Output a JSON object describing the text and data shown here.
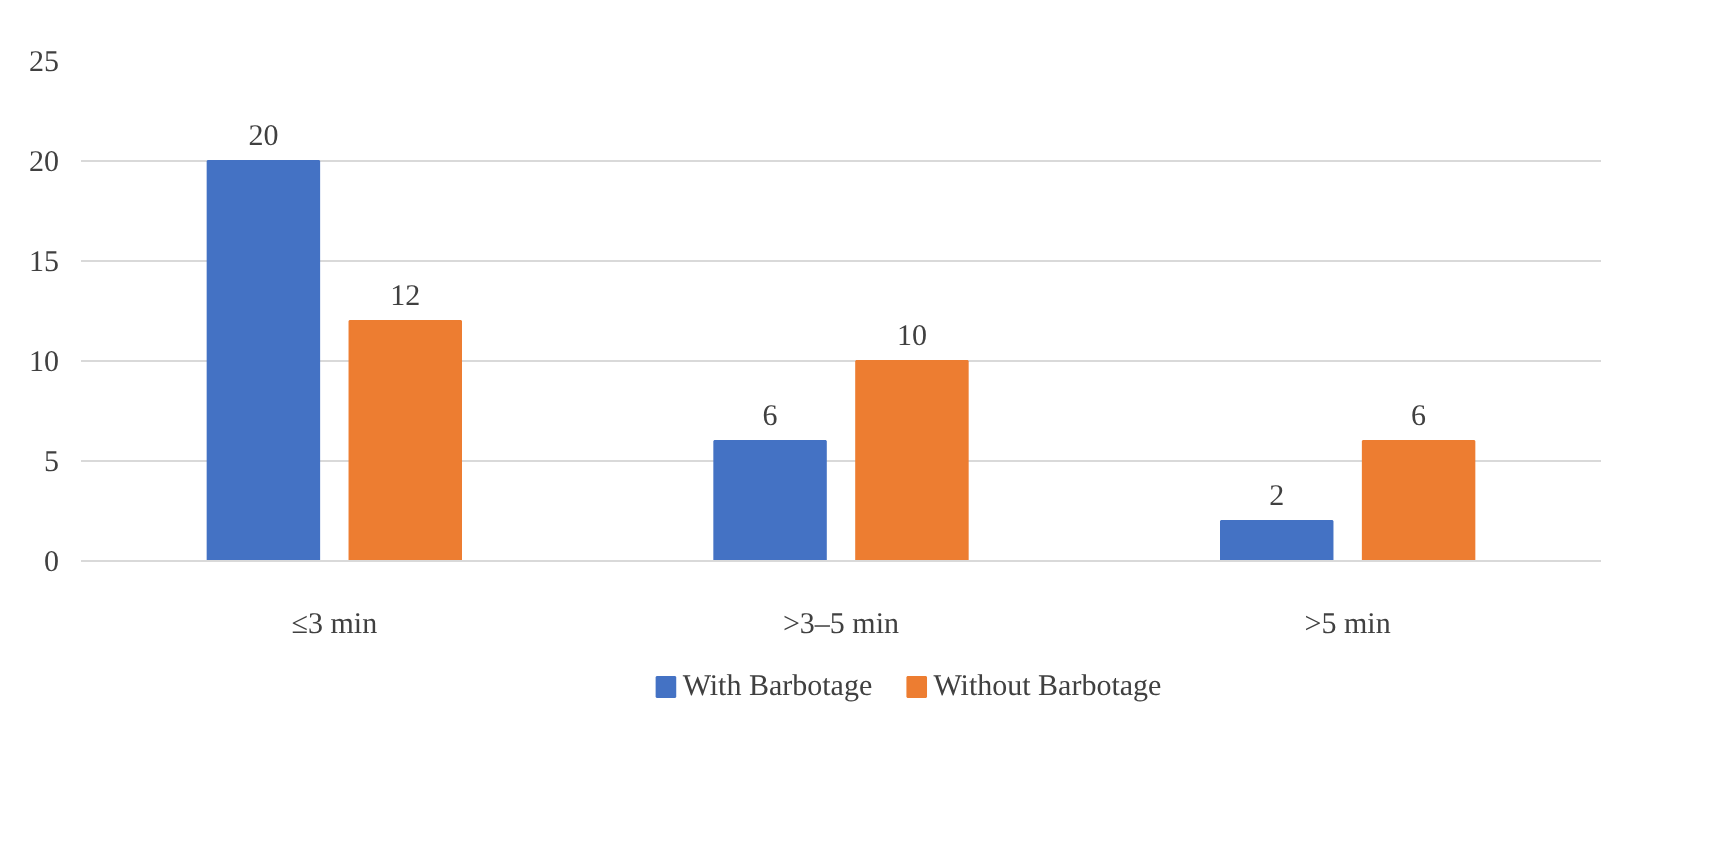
{
  "chart_data": {
    "type": "bar",
    "categories": [
      "≤3 min",
      ">3–5 min",
      ">5 min"
    ],
    "series": [
      {
        "name": "With Barbotage",
        "color": "#4472c4",
        "values": [
          20,
          6,
          2
        ]
      },
      {
        "name": "Without Barbotage",
        "color": "#ed7d31",
        "values": [
          12,
          10,
          6
        ]
      }
    ],
    "ylim": [
      0,
      25
    ],
    "yticks": [
      0,
      5,
      10,
      15,
      20,
      25
    ],
    "grid": "y",
    "legend": "bottom",
    "data_labels": true
  }
}
